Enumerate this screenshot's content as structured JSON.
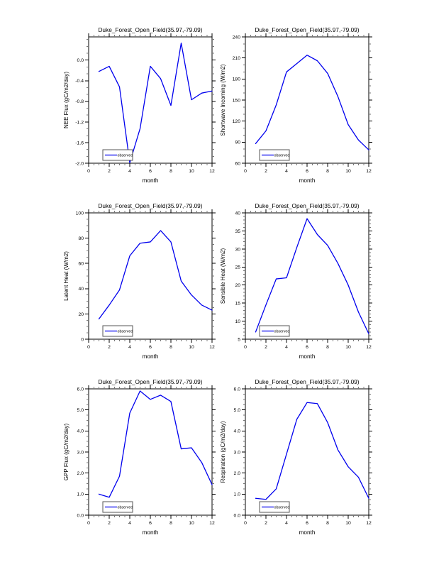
{
  "page": {
    "background": "#ffffff",
    "description": "Six-panel observed monthly climatology plots for Duke Forest Open Field site"
  },
  "chart_data": [
    {
      "type": "line",
      "title": "Duke_Forest_Open_Field(35.97,-79.09)",
      "ylabel": "NEE Flux (gC/m2/day)",
      "xlabel": "month",
      "legend": "observed",
      "line_color": "#0000ee",
      "x": [
        1,
        2,
        3,
        4,
        5,
        6,
        7,
        8,
        9,
        10,
        11,
        12
      ],
      "values": [
        -0.22,
        -0.12,
        -0.52,
        -1.99,
        -1.33,
        -0.12,
        -0.36,
        -0.88,
        0.33,
        -0.77,
        -0.64,
        -0.6
      ],
      "xlim": [
        0,
        12
      ],
      "xticks": [
        0,
        2,
        4,
        6,
        8,
        10,
        12
      ],
      "xtick_labels": [
        "0",
        "2",
        "4",
        "6",
        "8",
        "10",
        "12"
      ],
      "ylim": [
        -2.0,
        0.45
      ],
      "yticks": [
        0.0,
        -0.4,
        -0.8,
        -1.2,
        -1.6,
        -2.0
      ],
      "ytick_labels": [
        "0.0",
        "-0.4",
        "-0.8",
        "-1.2",
        "-1.6",
        "-2.0"
      ],
      "y_minor_div": 3,
      "x_minor_div": 4,
      "grid": false,
      "legend_position": "lower-left"
    },
    {
      "type": "line",
      "title": "Duke_Forest_Open_Field(35.97,-79.09)",
      "ylabel": "Shortwave Incoming (W/m2)",
      "xlabel": "month",
      "legend": "observed",
      "line_color": "#0000ee",
      "x": [
        1,
        2,
        3,
        4,
        5,
        6,
        7,
        8,
        9,
        10,
        11,
        12
      ],
      "values": [
        88,
        106,
        143,
        190,
        202,
        214,
        206,
        188,
        155,
        115,
        93,
        79
      ],
      "xlim": [
        0,
        12
      ],
      "xticks": [
        0,
        2,
        4,
        6,
        8,
        10,
        12
      ],
      "xtick_labels": [
        "0",
        "2",
        "4",
        "6",
        "8",
        "10",
        "12"
      ],
      "ylim": [
        60,
        240
      ],
      "yticks": [
        240,
        210,
        180,
        150,
        120,
        90,
        60
      ],
      "ytick_labels": [
        "240",
        "210",
        "180",
        "150",
        "120",
        "90",
        "60"
      ],
      "y_minor_div": 3,
      "x_minor_div": 4,
      "grid": false,
      "legend_position": "lower-left"
    },
    {
      "type": "line",
      "title": "Duke_Forest_Open_Field(35.97,-79.09)",
      "ylabel": "Latent Heat (W/m2)",
      "xlabel": "month",
      "legend": "observed",
      "line_color": "#0000ee",
      "x": [
        1,
        2,
        3,
        4,
        5,
        6,
        7,
        8,
        9,
        10,
        11,
        12
      ],
      "values": [
        16,
        27,
        39,
        66,
        76,
        77,
        86,
        77,
        46,
        35,
        27,
        23
      ],
      "xlim": [
        0,
        12
      ],
      "xticks": [
        0,
        2,
        4,
        6,
        8,
        10,
        12
      ],
      "xtick_labels": [
        "0",
        "2",
        "4",
        "6",
        "8",
        "10",
        "12"
      ],
      "ylim": [
        0,
        100
      ],
      "yticks": [
        100,
        80,
        60,
        40,
        20,
        0
      ],
      "ytick_labels": [
        "100",
        "80",
        "60",
        "40",
        "20",
        "0"
      ],
      "y_minor_div": 4,
      "x_minor_div": 4,
      "grid": false,
      "legend_position": "lower-left"
    },
    {
      "type": "line",
      "title": "Duke_Forest_Open_Field(35.97,-79.09)",
      "ylabel": "Sensible Heat (W/m2)",
      "xlabel": "month",
      "legend": "observed",
      "line_color": "#0000ee",
      "x": [
        1,
        2,
        3,
        4,
        5,
        6,
        7,
        8,
        9,
        10,
        11,
        12
      ],
      "values": [
        7,
        14.5,
        21.7,
        22,
        30.4,
        38.4,
        34,
        31,
        26,
        20,
        12.5,
        6.5
      ],
      "xlim": [
        0,
        12
      ],
      "xticks": [
        0,
        2,
        4,
        6,
        8,
        10,
        12
      ],
      "xtick_labels": [
        "0",
        "2",
        "4",
        "6",
        "8",
        "10",
        "12"
      ],
      "ylim": [
        5,
        40
      ],
      "yticks": [
        40,
        35,
        30,
        25,
        20,
        15,
        10,
        5
      ],
      "ytick_labels": [
        "40",
        "35",
        "30",
        "25",
        "20",
        "15",
        "10",
        "5"
      ],
      "y_minor_div": 5,
      "x_minor_div": 4,
      "grid": false,
      "legend_position": "lower-left"
    },
    {
      "type": "line",
      "title": "Duke_Forest_Open_Field(35.97,-79.09)",
      "ylabel": "GPP Flux (gC/m2/day)",
      "xlabel": "month",
      "legend": "observed",
      "line_color": "#0000ee",
      "x": [
        1,
        2,
        3,
        4,
        5,
        6,
        7,
        8,
        9,
        10,
        11,
        12
      ],
      "values": [
        1.0,
        0.85,
        1.85,
        4.85,
        5.9,
        5.5,
        5.7,
        5.4,
        3.15,
        3.2,
        2.5,
        1.45
      ],
      "xlim": [
        0,
        12
      ],
      "xticks": [
        0,
        2,
        4,
        6,
        8,
        10,
        12
      ],
      "xtick_labels": [
        "0",
        "2",
        "4",
        "6",
        "8",
        "10",
        "12"
      ],
      "ylim": [
        0,
        6
      ],
      "yticks": [
        6.0,
        5.0,
        4.0,
        3.0,
        2.0,
        1.0,
        0.0
      ],
      "ytick_labels": [
        "6.0",
        "5.0",
        "4.0",
        "3.0",
        "2.0",
        "1.0",
        "0.0"
      ],
      "y_minor_div": 4,
      "x_minor_div": 4,
      "grid": false,
      "legend_position": "lower-left"
    },
    {
      "type": "line",
      "title": "Duke_Forest_Open_Field(35.97,-79.09)",
      "ylabel": "Respiration (gC/m2/day)",
      "xlabel": "month",
      "legend": "observed",
      "line_color": "#0000ee",
      "x": [
        1,
        2,
        3,
        4,
        5,
        6,
        7,
        8,
        9,
        10,
        11,
        12
      ],
      "values": [
        0.8,
        0.75,
        1.25,
        2.9,
        4.55,
        5.35,
        5.3,
        4.4,
        3.1,
        2.3,
        1.8,
        0.8
      ],
      "xlim": [
        0,
        12
      ],
      "xticks": [
        0,
        2,
        4,
        6,
        8,
        10,
        12
      ],
      "xtick_labels": [
        "0",
        "2",
        "4",
        "6",
        "8",
        "10",
        "12"
      ],
      "ylim": [
        0,
        6
      ],
      "yticks": [
        6.0,
        5.0,
        4.0,
        3.0,
        2.0,
        1.0,
        0.0
      ],
      "ytick_labels": [
        "6.0",
        "5.0",
        "4.0",
        "3.0",
        "2.0",
        "1.0",
        "0.0"
      ],
      "y_minor_div": 4,
      "x_minor_div": 4,
      "grid": false,
      "legend_position": "lower-left"
    }
  ]
}
